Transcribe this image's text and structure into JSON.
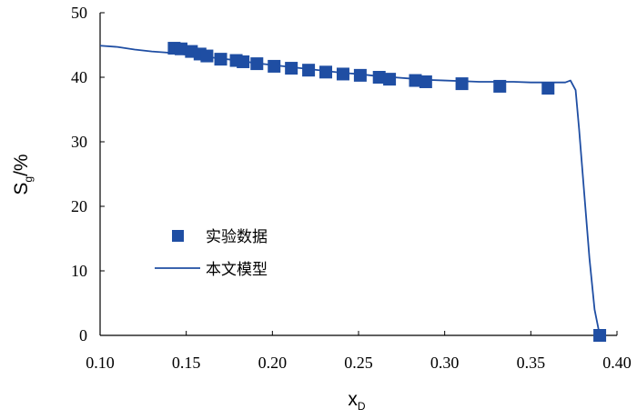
{
  "chart_data": {
    "type": "scatter",
    "xlabel": "x",
    "xlabel_sub": "D",
    "ylabel": "S",
    "ylabel_sub": "g",
    "ylabel_suffix": "/%",
    "xlim": [
      0.1,
      0.4
    ],
    "ylim": [
      0,
      50
    ],
    "xticks": [
      "0.10",
      "0.15",
      "0.20",
      "0.25",
      "0.30",
      "0.35",
      "0.40"
    ],
    "yticks": [
      "0",
      "10",
      "20",
      "30",
      "40",
      "50"
    ],
    "grid": false,
    "legend_position": "center-left",
    "colors": {
      "series": "#1f4ea3"
    },
    "series": [
      {
        "name": "实验数据",
        "kind": "markers",
        "marker": "square",
        "points": [
          [
            0.143,
            44.5
          ],
          [
            0.147,
            44.4
          ],
          [
            0.153,
            44.0
          ],
          [
            0.158,
            43.6
          ],
          [
            0.162,
            43.3
          ],
          [
            0.17,
            42.8
          ],
          [
            0.179,
            42.6
          ],
          [
            0.183,
            42.4
          ],
          [
            0.191,
            42.1
          ],
          [
            0.201,
            41.7
          ],
          [
            0.211,
            41.4
          ],
          [
            0.221,
            41.1
          ],
          [
            0.231,
            40.8
          ],
          [
            0.241,
            40.5
          ],
          [
            0.251,
            40.3
          ],
          [
            0.262,
            40.0
          ],
          [
            0.268,
            39.7
          ],
          [
            0.283,
            39.5
          ],
          [
            0.289,
            39.3
          ],
          [
            0.31,
            39.0
          ],
          [
            0.332,
            38.6
          ],
          [
            0.36,
            38.3
          ],
          [
            0.39,
            0.0
          ]
        ]
      },
      {
        "name": "本文模型",
        "kind": "line",
        "points": [
          [
            0.1,
            44.9
          ],
          [
            0.11,
            44.7
          ],
          [
            0.12,
            44.3
          ],
          [
            0.13,
            44.0
          ],
          [
            0.14,
            43.8
          ],
          [
            0.15,
            43.5
          ],
          [
            0.16,
            43.2
          ],
          [
            0.17,
            42.9
          ],
          [
            0.18,
            42.6
          ],
          [
            0.19,
            42.2
          ],
          [
            0.2,
            41.9
          ],
          [
            0.21,
            41.6
          ],
          [
            0.22,
            41.3
          ],
          [
            0.23,
            41.0
          ],
          [
            0.24,
            40.7
          ],
          [
            0.25,
            40.5
          ],
          [
            0.26,
            40.2
          ],
          [
            0.27,
            40.0
          ],
          [
            0.28,
            39.8
          ],
          [
            0.29,
            39.6
          ],
          [
            0.3,
            39.5
          ],
          [
            0.31,
            39.4
          ],
          [
            0.32,
            39.3
          ],
          [
            0.33,
            39.3
          ],
          [
            0.34,
            39.3
          ],
          [
            0.35,
            39.2
          ],
          [
            0.36,
            39.2
          ],
          [
            0.37,
            39.2
          ],
          [
            0.373,
            39.5
          ],
          [
            0.376,
            38.0
          ],
          [
            0.378,
            32.0
          ],
          [
            0.381,
            22.0
          ],
          [
            0.384,
            12.0
          ],
          [
            0.387,
            4.0
          ],
          [
            0.39,
            0.0
          ]
        ]
      }
    ]
  }
}
